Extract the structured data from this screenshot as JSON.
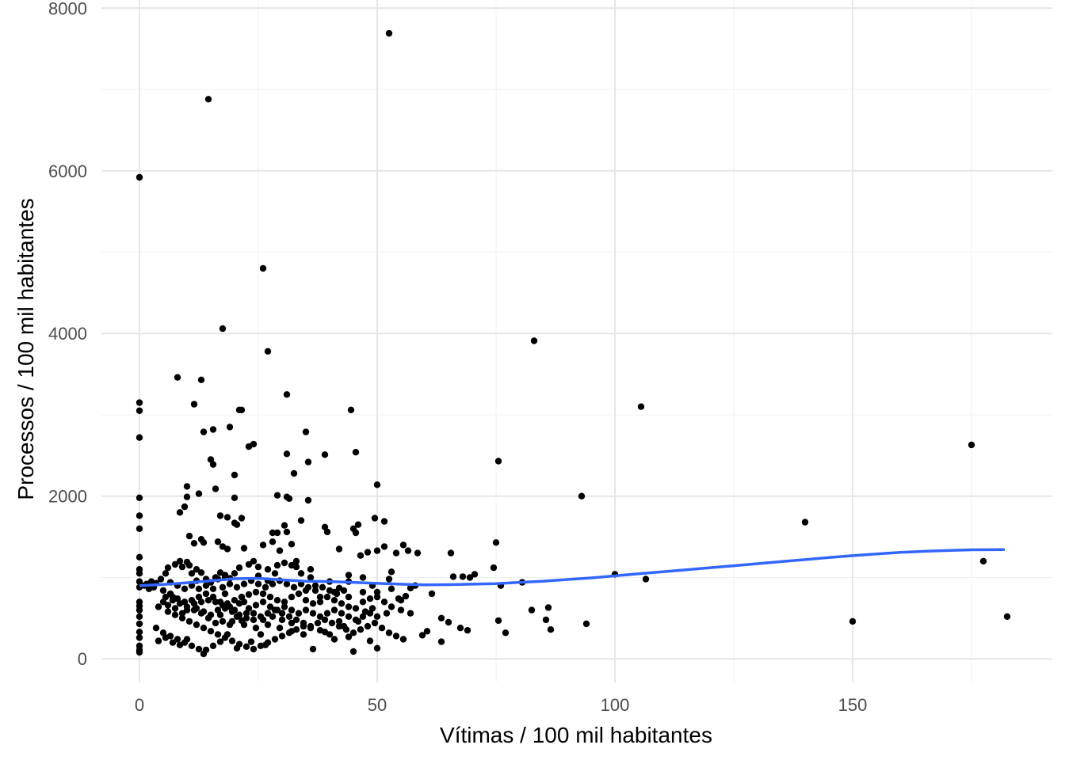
{
  "chart_data": {
    "type": "scatter",
    "xlabel": "Vítimas / 100 mil habitantes",
    "ylabel": "Processos / 100 mil habitantes",
    "xlim": [
      -8,
      192
    ],
    "ylim": [
      -290,
      8100
    ],
    "x_ticks": [
      0,
      50,
      100,
      150
    ],
    "y_ticks": [
      0,
      2000,
      4000,
      6000,
      8000
    ],
    "x_tick_labels": [
      "0",
      "50",
      "100",
      "150"
    ],
    "y_tick_labels": [
      "0",
      "2000",
      "4000",
      "6000",
      "8000"
    ],
    "grid": true,
    "legend": "none",
    "point_color": "#000000",
    "smooth_color": "#3366FF",
    "points": [
      [
        0,
        5920
      ],
      [
        0,
        3150
      ],
      [
        0,
        3050
      ],
      [
        0,
        2720
      ],
      [
        0,
        1980
      ],
      [
        0,
        1760
      ],
      [
        0,
        1600
      ],
      [
        0,
        1250
      ],
      [
        0,
        1100
      ],
      [
        0,
        1050
      ],
      [
        0,
        950
      ],
      [
        0,
        880
      ],
      [
        0,
        700
      ],
      [
        0,
        650
      ],
      [
        0,
        600
      ],
      [
        0,
        520
      ],
      [
        0,
        430
      ],
      [
        0,
        330
      ],
      [
        0,
        260
      ],
      [
        0,
        160
      ],
      [
        0,
        110
      ],
      [
        0,
        80
      ],
      [
        14.5,
        6880
      ],
      [
        52.5,
        7690
      ],
      [
        26,
        4800
      ],
      [
        17.5,
        4060
      ],
      [
        27,
        3780
      ],
      [
        8,
        3460
      ],
      [
        13,
        3430
      ],
      [
        11.5,
        3130
      ],
      [
        31,
        3250
      ],
      [
        44.5,
        3060
      ],
      [
        21,
        3060
      ],
      [
        21.5,
        3060
      ],
      [
        19,
        2850
      ],
      [
        15.5,
        2820
      ],
      [
        13.5,
        2790
      ],
      [
        24,
        2640
      ],
      [
        23,
        2610
      ],
      [
        35,
        2790
      ],
      [
        31,
        2520
      ],
      [
        39,
        2510
      ],
      [
        45.5,
        2540
      ],
      [
        15,
        2450
      ],
      [
        15.5,
        2390
      ],
      [
        35.5,
        2420
      ],
      [
        32.5,
        2280
      ],
      [
        20,
        2260
      ],
      [
        50,
        2140
      ],
      [
        10,
        2120
      ],
      [
        16,
        2090
      ],
      [
        12.5,
        2030
      ],
      [
        10,
        1990
      ],
      [
        20,
        1980
      ],
      [
        29,
        2010
      ],
      [
        31.5,
        1970
      ],
      [
        31,
        1990
      ],
      [
        35.5,
        1950
      ],
      [
        9.5,
        1870
      ],
      [
        8.5,
        1800
      ],
      [
        17,
        1760
      ],
      [
        18.5,
        1740
      ],
      [
        21.5,
        1730
      ],
      [
        20,
        1670
      ],
      [
        20.5,
        1650
      ],
      [
        34,
        1700
      ],
      [
        30.5,
        1640
      ],
      [
        39,
        1620
      ],
      [
        39.5,
        1560
      ],
      [
        45,
        1600
      ],
      [
        46,
        1650
      ],
      [
        49.5,
        1730
      ],
      [
        51.5,
        1690
      ],
      [
        45.5,
        1550
      ],
      [
        16.5,
        1440
      ],
      [
        17.5,
        1380
      ],
      [
        18.5,
        1350
      ],
      [
        13.5,
        1430
      ],
      [
        13,
        1470
      ],
      [
        10.5,
        1510
      ],
      [
        11.5,
        1420
      ],
      [
        28,
        1550
      ],
      [
        29,
        1550
      ],
      [
        31,
        1560
      ],
      [
        28,
        1440
      ],
      [
        32,
        1410
      ],
      [
        26,
        1400
      ],
      [
        29.5,
        1330
      ],
      [
        22,
        1360
      ],
      [
        42,
        1350
      ],
      [
        46.5,
        1270
      ],
      [
        48,
        1310
      ],
      [
        50,
        1330
      ],
      [
        51.5,
        1380
      ],
      [
        54,
        1300
      ],
      [
        55.5,
        1400
      ],
      [
        56.5,
        1330
      ],
      [
        58.5,
        1300
      ],
      [
        65.5,
        1300
      ],
      [
        75,
        1430
      ],
      [
        75.5,
        2430
      ],
      [
        83,
        3910
      ],
      [
        93,
        2000
      ],
      [
        105.5,
        3100
      ],
      [
        140,
        1680
      ],
      [
        175,
        2630
      ],
      [
        177.5,
        1200
      ],
      [
        182.5,
        520
      ],
      [
        150,
        460
      ],
      [
        94,
        430
      ],
      [
        106.5,
        980
      ],
      [
        100,
        1040
      ],
      [
        80.5,
        940
      ],
      [
        76,
        900
      ],
      [
        74.5,
        1120
      ],
      [
        69.5,
        1000
      ],
      [
        70.5,
        1040
      ],
      [
        68,
        1010
      ],
      [
        66,
        1010
      ],
      [
        82.5,
        600
      ],
      [
        86,
        630
      ],
      [
        85.5,
        480
      ],
      [
        86.5,
        360
      ],
      [
        75.5,
        470
      ],
      [
        77,
        320
      ],
      [
        69,
        350
      ],
      [
        67.5,
        380
      ],
      [
        63.5,
        500
      ],
      [
        65,
        450
      ],
      [
        63.5,
        210
      ],
      [
        60.5,
        340
      ],
      [
        59.5,
        290
      ],
      [
        61.5,
        800
      ],
      [
        56,
        770
      ],
      [
        54.5,
        740
      ],
      [
        58,
        900
      ],
      [
        52.5,
        980
      ],
      [
        53,
        1070
      ],
      [
        49,
        900
      ],
      [
        47,
        1000
      ],
      [
        44,
        1030
      ],
      [
        44,
        950
      ],
      [
        42,
        870
      ],
      [
        40,
        950
      ],
      [
        37,
        900
      ],
      [
        36,
        1000
      ],
      [
        34,
        1050
      ],
      [
        33,
        1130
      ],
      [
        32,
        1150
      ],
      [
        30.5,
        1180
      ],
      [
        28.5,
        1050
      ],
      [
        27,
        1100
      ],
      [
        25,
        1130
      ],
      [
        24,
        1200
      ],
      [
        23,
        1160
      ],
      [
        21,
        1120
      ],
      [
        20,
        1050
      ],
      [
        19,
        990
      ],
      [
        18,
        1030
      ],
      [
        17,
        1060
      ],
      [
        16,
        1000
      ],
      [
        15,
        940
      ],
      [
        14,
        980
      ],
      [
        13,
        1060
      ],
      [
        12,
        1100
      ],
      [
        11,
        1050
      ],
      [
        10.5,
        1150
      ],
      [
        10,
        1190
      ],
      [
        9,
        1130
      ],
      [
        8.5,
        1200
      ],
      [
        7.5,
        1160
      ],
      [
        6,
        1120
      ],
      [
        5.5,
        1050
      ],
      [
        4.5,
        980
      ],
      [
        3.5,
        930
      ],
      [
        3,
        880
      ],
      [
        2,
        860
      ],
      [
        1,
        900
      ],
      [
        1.5,
        920
      ],
      [
        2.5,
        950
      ],
      [
        5,
        840
      ],
      [
        6.5,
        800
      ],
      [
        7,
        760
      ],
      [
        8,
        740
      ],
      [
        9.5,
        700
      ],
      [
        11,
        720
      ],
      [
        12.5,
        760
      ],
      [
        14,
        800
      ],
      [
        15.5,
        760
      ],
      [
        17,
        700
      ],
      [
        18.5,
        680
      ],
      [
        20,
        720
      ],
      [
        21.5,
        760
      ],
      [
        23,
        790
      ],
      [
        24.5,
        820
      ],
      [
        26,
        800
      ],
      [
        27.5,
        760
      ],
      [
        29,
        720
      ],
      [
        30.5,
        700
      ],
      [
        32,
        760
      ],
      [
        33.5,
        800
      ],
      [
        35,
        720
      ],
      [
        36.5,
        680
      ],
      [
        38,
        700
      ],
      [
        39.5,
        760
      ],
      [
        41,
        720
      ],
      [
        42.5,
        680
      ],
      [
        44,
        640
      ],
      [
        45.5,
        620
      ],
      [
        47,
        700
      ],
      [
        48.5,
        740
      ],
      [
        50,
        760
      ],
      [
        51.5,
        700
      ],
      [
        53,
        640
      ],
      [
        55,
        600
      ],
      [
        57,
        560
      ],
      [
        12,
        620
      ],
      [
        13.5,
        580
      ],
      [
        15,
        540
      ],
      [
        16.5,
        600
      ],
      [
        18,
        620
      ],
      [
        19.5,
        580
      ],
      [
        21,
        540
      ],
      [
        22.5,
        500
      ],
      [
        24,
        480
      ],
      [
        25.5,
        520
      ],
      [
        27,
        560
      ],
      [
        28.5,
        600
      ],
      [
        30,
        560
      ],
      [
        31.5,
        520
      ],
      [
        33,
        480
      ],
      [
        34.5,
        440
      ],
      [
        36,
        400
      ],
      [
        37.5,
        440
      ],
      [
        39,
        480
      ],
      [
        40.5,
        440
      ],
      [
        42,
        400
      ],
      [
        43.5,
        360
      ],
      [
        45,
        320
      ],
      [
        46.5,
        360
      ],
      [
        48,
        400
      ],
      [
        49.5,
        440
      ],
      [
        51,
        380
      ],
      [
        52.5,
        320
      ],
      [
        54,
        280
      ],
      [
        55.5,
        240
      ],
      [
        6,
        580
      ],
      [
        7.5,
        540
      ],
      [
        9,
        500
      ],
      [
        10.5,
        460
      ],
      [
        12,
        420
      ],
      [
        13.5,
        380
      ],
      [
        15,
        340
      ],
      [
        16.5,
        300
      ],
      [
        18,
        260
      ],
      [
        19.5,
        220
      ],
      [
        21,
        180
      ],
      [
        22.5,
        150
      ],
      [
        24,
        120
      ],
      [
        25.5,
        160
      ],
      [
        27,
        200
      ],
      [
        28.5,
        240
      ],
      [
        30,
        280
      ],
      [
        31.5,
        320
      ],
      [
        33,
        360
      ],
      [
        34.5,
        400
      ],
      [
        3.5,
        380
      ],
      [
        5,
        320
      ],
      [
        6.5,
        280
      ],
      [
        8,
        240
      ],
      [
        9.5,
        200
      ],
      [
        11,
        160
      ],
      [
        12.5,
        120
      ],
      [
        13.5,
        60
      ],
      [
        14,
        110
      ],
      [
        15.5,
        160
      ],
      [
        17,
        210
      ],
      [
        4,
        220
      ],
      [
        5.5,
        260
      ],
      [
        7,
        200
      ],
      [
        8.5,
        170
      ],
      [
        10,
        240
      ],
      [
        36.5,
        120
      ],
      [
        45,
        90
      ],
      [
        50,
        130
      ],
      [
        48.5,
        220
      ],
      [
        44,
        270
      ],
      [
        40,
        300
      ],
      [
        38,
        350
      ],
      [
        36,
        380
      ],
      [
        41,
        240
      ],
      [
        26.5,
        170
      ],
      [
        23.5,
        210
      ],
      [
        20.5,
        130
      ],
      [
        18.5,
        300
      ],
      [
        16,
        440
      ],
      [
        14.5,
        500
      ],
      [
        13,
        560
      ],
      [
        11.5,
        600
      ],
      [
        10,
        640
      ],
      [
        8.5,
        680
      ],
      [
        7,
        720
      ],
      [
        5.5,
        760
      ],
      [
        23,
        620
      ],
      [
        24.5,
        660
      ],
      [
        26,
        700
      ],
      [
        27.5,
        640
      ],
      [
        29,
        600
      ],
      [
        30.5,
        640
      ],
      [
        32,
        600
      ],
      [
        33.5,
        560
      ],
      [
        35,
        600
      ],
      [
        36.5,
        560
      ],
      [
        38,
        520
      ],
      [
        39.5,
        560
      ],
      [
        41,
        600
      ],
      [
        42.5,
        560
      ],
      [
        44,
        520
      ],
      [
        45.5,
        480
      ],
      [
        47,
        520
      ],
      [
        48.5,
        560
      ],
      [
        50,
        520
      ],
      [
        17.5,
        880
      ],
      [
        19,
        920
      ],
      [
        20.5,
        880
      ],
      [
        22,
        920
      ],
      [
        23.5,
        960
      ],
      [
        25,
        920
      ],
      [
        26.5,
        880
      ],
      [
        28,
        920
      ],
      [
        29.5,
        960
      ],
      [
        31,
        920
      ],
      [
        32.5,
        880
      ],
      [
        34,
        920
      ],
      [
        35.5,
        880
      ],
      [
        37,
        840
      ],
      [
        38.5,
        880
      ],
      [
        40,
        840
      ],
      [
        41.5,
        800
      ],
      [
        43,
        840
      ],
      [
        15.5,
        860
      ],
      [
        14,
        900
      ],
      [
        12.5,
        860
      ],
      [
        11,
        900
      ],
      [
        9.5,
        860
      ],
      [
        8,
        900
      ],
      [
        6.5,
        940
      ],
      [
        17,
        540
      ],
      [
        19.5,
        460
      ],
      [
        22,
        420
      ],
      [
        24.5,
        380
      ],
      [
        27,
        420
      ],
      [
        29.5,
        380
      ],
      [
        32,
        340
      ],
      [
        34.5,
        300
      ],
      [
        39,
        330
      ],
      [
        42,
        460
      ],
      [
        46,
        460
      ],
      [
        25,
        1020
      ],
      [
        18,
        800
      ],
      [
        20,
        600
      ],
      [
        22,
        700
      ],
      [
        24,
        560
      ],
      [
        21,
        680
      ],
      [
        19,
        640
      ],
      [
        17.5,
        660
      ],
      [
        16,
        700
      ],
      [
        14.5,
        720
      ],
      [
        13,
        700
      ],
      [
        11.5,
        680
      ],
      [
        10,
        600
      ],
      [
        9,
        560
      ],
      [
        7.5,
        620
      ],
      [
        6,
        660
      ],
      [
        5,
        700
      ],
      [
        4,
        640
      ],
      [
        26,
        480
      ],
      [
        28,
        520
      ],
      [
        30,
        480
      ],
      [
        32,
        440
      ],
      [
        35,
        840
      ],
      [
        38,
        760
      ],
      [
        41,
        820
      ],
      [
        44,
        760
      ],
      [
        47,
        820
      ],
      [
        50,
        820
      ],
      [
        53,
        860
      ],
      [
        29,
        1150
      ],
      [
        33,
        1200
      ],
      [
        36,
        1100
      ],
      [
        27,
        960
      ],
      [
        18,
        1000
      ],
      [
        16.5,
        980
      ],
      [
        12,
        960
      ],
      [
        22.5,
        560
      ],
      [
        25.5,
        300
      ],
      [
        43,
        400
      ],
      [
        47.5,
        580
      ],
      [
        49,
        620
      ],
      [
        52,
        560
      ],
      [
        55,
        720
      ],
      [
        57,
        870
      ],
      [
        21.5,
        470
      ],
      [
        20.5,
        520
      ],
      [
        19,
        420
      ],
      [
        17.5,
        460
      ]
    ],
    "smooth": [
      [
        0,
        900
      ],
      [
        5,
        915
      ],
      [
        10,
        935
      ],
      [
        15,
        960
      ],
      [
        20,
        985
      ],
      [
        25,
        990
      ],
      [
        30,
        970
      ],
      [
        35,
        955
      ],
      [
        40,
        950
      ],
      [
        45,
        940
      ],
      [
        50,
        928
      ],
      [
        55,
        918
      ],
      [
        60,
        910
      ],
      [
        65,
        912
      ],
      [
        70,
        918
      ],
      [
        75,
        925
      ],
      [
        80,
        940
      ],
      [
        85,
        955
      ],
      [
        90,
        975
      ],
      [
        95,
        995
      ],
      [
        100,
        1020
      ],
      [
        105,
        1045
      ],
      [
        110,
        1070
      ],
      [
        115,
        1095
      ],
      [
        120,
        1120
      ],
      [
        125,
        1145
      ],
      [
        130,
        1170
      ],
      [
        135,
        1195
      ],
      [
        140,
        1220
      ],
      [
        145,
        1245
      ],
      [
        150,
        1268
      ],
      [
        155,
        1290
      ],
      [
        160,
        1308
      ],
      [
        165,
        1322
      ],
      [
        170,
        1332
      ],
      [
        175,
        1340
      ],
      [
        182,
        1342
      ]
    ]
  }
}
